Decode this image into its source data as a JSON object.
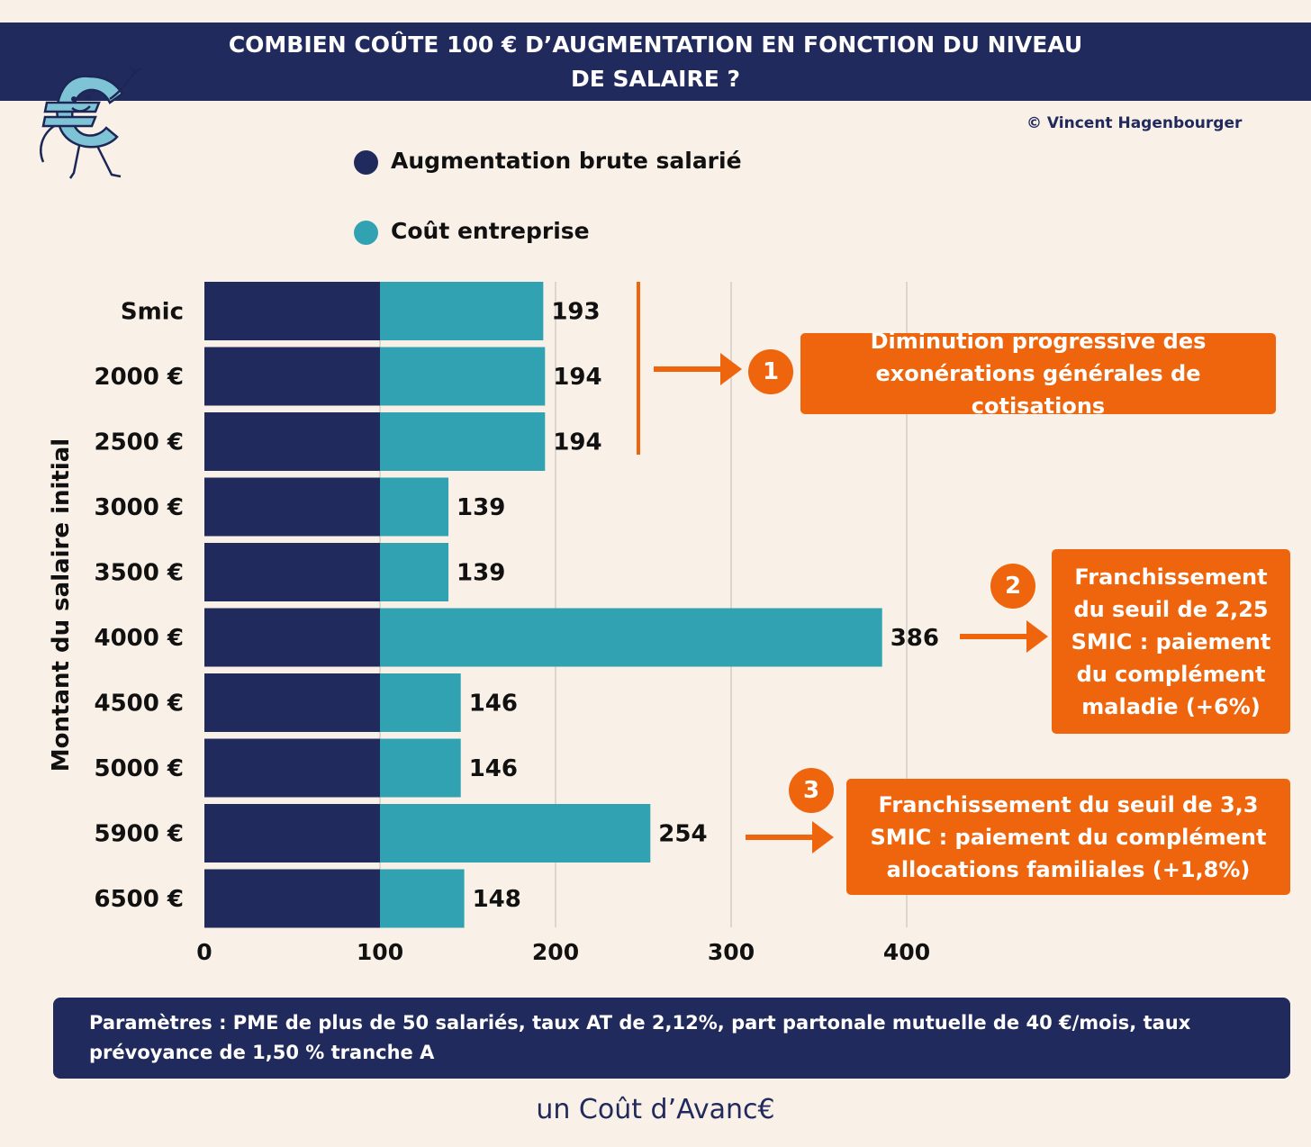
{
  "header": {
    "title_line1": "COMBIEN COÛTE 100 € D’AUGMENTATION EN FONCTION DU NIVEAU",
    "title_line2": "DE SALAIRE ?"
  },
  "copyright": "© Vincent Hagenbourger",
  "colors": {
    "navy": "#212a5c",
    "teal": "#31a2b1",
    "orange": "#ef650d",
    "background": "#f9f0e7"
  },
  "legend": [
    {
      "label": "Augmentation brute salarié",
      "color": "#212a5c"
    },
    {
      "label": "Coût entreprise",
      "color": "#31a2b1"
    }
  ],
  "chart_data": {
    "type": "bar",
    "orientation": "horizontal",
    "ylabel": "Montant du salaire initial",
    "xlim": [
      0,
      400
    ],
    "xticks": [
      0,
      100,
      200,
      300,
      400
    ],
    "grid": "vertical",
    "categories": [
      "Smic",
      "2000 €",
      "2500 €",
      "3000 €",
      "3500 €",
      "4000 €",
      "4500 €",
      "5000 €",
      "5900 €",
      "6500 €"
    ],
    "series": [
      {
        "name": "Augmentation brute salarié",
        "values": [
          100,
          100,
          100,
          100,
          100,
          100,
          100,
          100,
          100,
          100
        ]
      },
      {
        "name": "Coût entreprise",
        "values": [
          193,
          194,
          194,
          139,
          139,
          386,
          146,
          146,
          254,
          148
        ]
      }
    ],
    "data_labels": [
      "193",
      "194",
      "194",
      "139",
      "139",
      "386",
      "146",
      "146",
      "254",
      "148"
    ]
  },
  "annotations": [
    {
      "number": "1",
      "text": "Diminution progressive des exonérations générales de cotisations"
    },
    {
      "number": "2",
      "text": "Franchissement du seuil de 2,25 SMIC : paiement du complément maladie (+6%)"
    },
    {
      "number": "3",
      "text": "Franchissement du seuil de 3,3 SMIC : paiement du complément allocations familiales (+1,8%)"
    }
  ],
  "footer": {
    "parameters": "Paramètres : PME de plus de 50 salariés, taux AT de 2,12%, part partonale mutuelle de 40 €/mois, taux prévoyance de 1,50 % tranche A"
  },
  "brand": "un Coût d’Avanc€"
}
